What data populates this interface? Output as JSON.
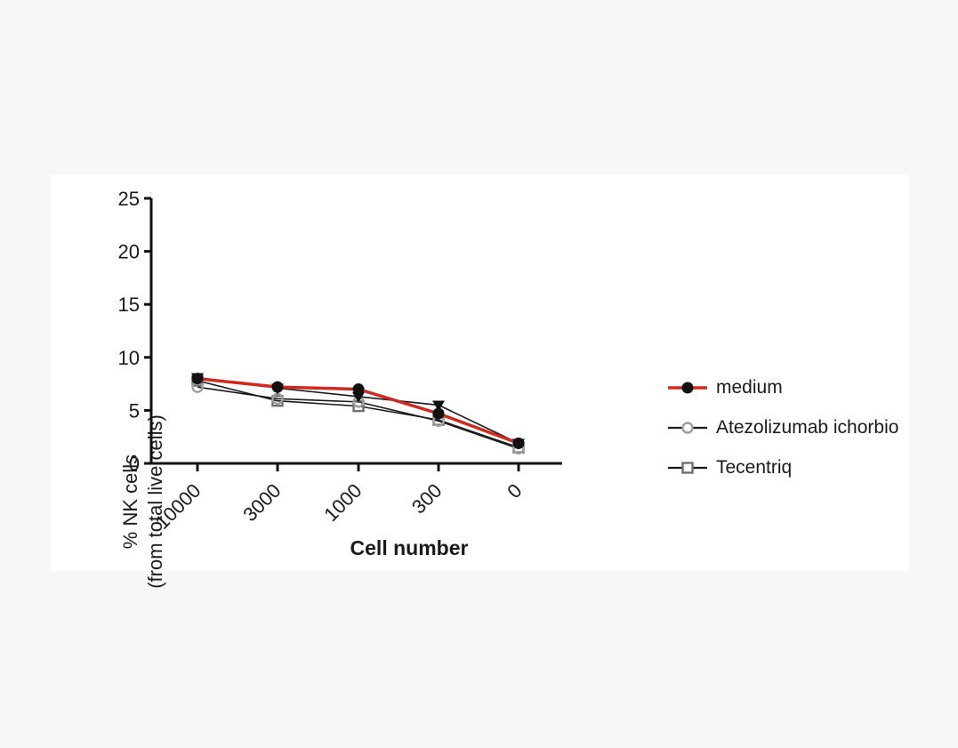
{
  "background_color": "#f7f7f8",
  "panel_color": "#ffffff",
  "chart_data": {
    "type": "line",
    "title": "",
    "xlabel": "Cell number",
    "ylabel_line1": "% NK cells",
    "ylabel_line2": "(from total live cells)",
    "categories": [
      "10000",
      "3000",
      "1000",
      "300",
      "0"
    ],
    "y_axis": {
      "min": 0,
      "max": 25,
      "step": 5,
      "ticks": [
        0,
        5,
        10,
        15,
        20,
        25
      ]
    },
    "grid": false,
    "legend_position": "right",
    "axis_color": "#111111",
    "series": [
      {
        "name": "medium",
        "marker": "circle-filled",
        "marker_color": "#111111",
        "line_color": "#d2281e",
        "line_width": 3.5,
        "values": [
          8.0,
          7.2,
          7.0,
          4.7,
          1.9
        ]
      },
      {
        "name": "",
        "marker": "triangle-down-filled",
        "marker_color": "#111111",
        "line_color": "#1a1a1a",
        "line_width": 1.6,
        "values": [
          8.1,
          7.1,
          6.3,
          5.5,
          1.9
        ]
      },
      {
        "name": "Atezolizumab ichorbio",
        "marker": "circle-open",
        "marker_color": "#9e9e9e",
        "line_color": "#1a1a1a",
        "line_width": 1.6,
        "values": [
          7.2,
          6.1,
          5.8,
          4.0,
          1.4
        ]
      },
      {
        "name": "Tecentriq",
        "marker": "square-open",
        "marker_color": "#6f6f6f",
        "line_color": "#1a1a1a",
        "line_width": 1.6,
        "values": [
          7.8,
          5.9,
          5.4,
          4.1,
          1.5
        ]
      }
    ]
  },
  "legend": {
    "items": [
      {
        "label": "medium",
        "series_index": 0
      },
      {
        "label": "Atezolizumab ichorbio",
        "series_index": 2
      },
      {
        "label": "Tecentriq",
        "series_index": 3
      }
    ]
  }
}
